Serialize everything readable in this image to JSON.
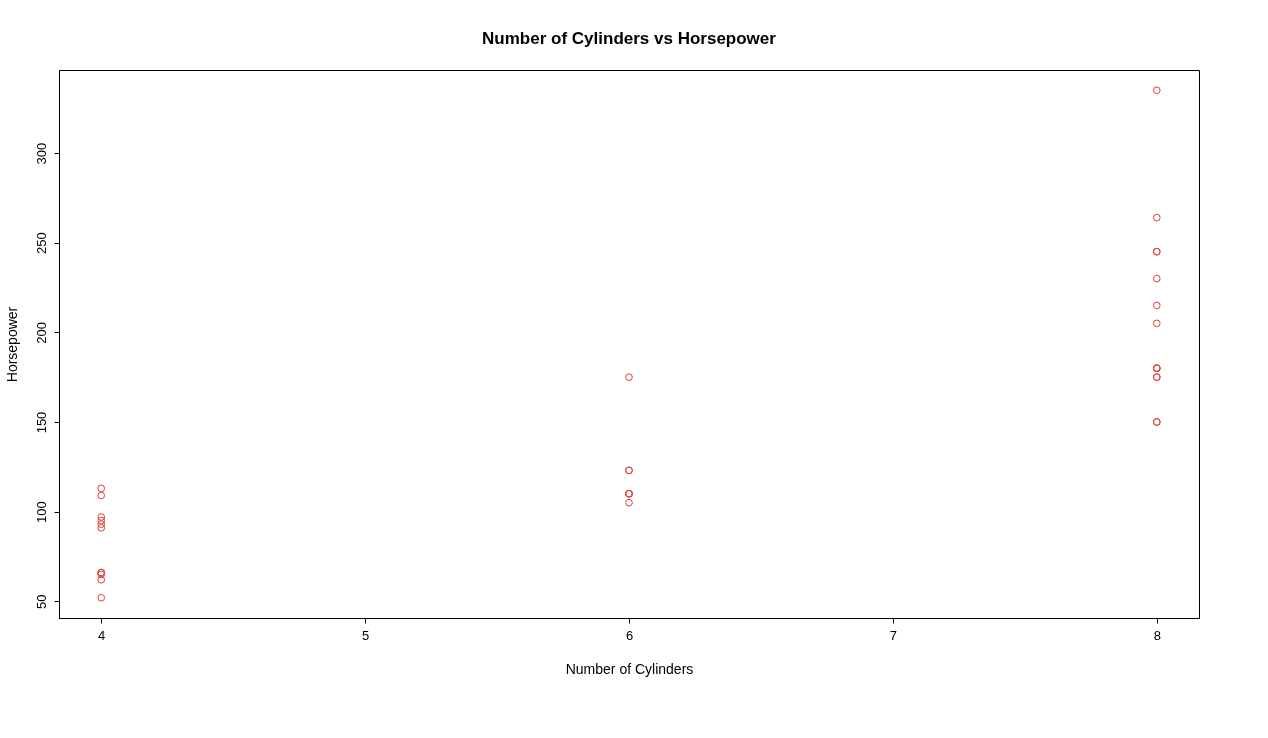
{
  "chart_data": {
    "type": "scatter",
    "title": "Number of Cylinders vs Horsepower",
    "xlabel": "Number of Cylinders",
    "ylabel": "Horsepower",
    "x": [
      6,
      6,
      4,
      6,
      8,
      6,
      8,
      4,
      4,
      6,
      6,
      8,
      8,
      8,
      8,
      8,
      8,
      4,
      4,
      4,
      4,
      8,
      8,
      8,
      8,
      4,
      4,
      4,
      8,
      6,
      8,
      4
    ],
    "series": [
      {
        "color": "#e0403a",
        "values": [
          110,
          110,
          93,
          110,
          175,
          105,
          245,
          62,
          95,
          123,
          123,
          180,
          180,
          180,
          205,
          215,
          230,
          66,
          52,
          65,
          97,
          150,
          150,
          245,
          175,
          66,
          91,
          113,
          264,
          175,
          335,
          109
        ]
      }
    ],
    "xlim": [
      3.84,
      8.16
    ],
    "ylim": [
      40.68,
      346.32
    ],
    "xticks": [
      4,
      5,
      6,
      7,
      8
    ],
    "yticks": [
      50,
      100,
      150,
      200,
      250,
      300
    ],
    "marker": "circle",
    "grid": false,
    "legend": false
  }
}
